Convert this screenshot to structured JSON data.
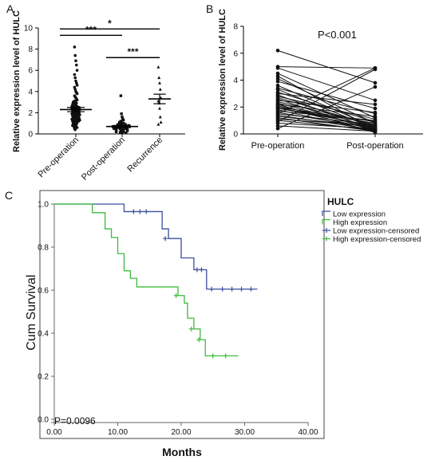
{
  "panels": {
    "a": "A",
    "b": "B",
    "c": "C"
  },
  "chart_data": [
    {
      "type": "scatter",
      "panel": "A",
      "ylabel": "Relative expression level of HULC",
      "ylim": [
        0,
        10
      ],
      "yticks": [
        "0",
        "2",
        "4",
        "6",
        "8",
        "10"
      ],
      "categories": [
        "Pre-operation",
        "Post-operation",
        "Recurrence"
      ],
      "groups": [
        {
          "name": "Pre-operation",
          "marker": "circle",
          "mean": 2.3,
          "sem": 0.2,
          "values": [
            8.2,
            7.4,
            6.9,
            6.5,
            6.0,
            5.6,
            5.3,
            5.0,
            4.8,
            4.6,
            4.4,
            4.2,
            4.0,
            3.9,
            3.8,
            3.6,
            3.5,
            3.4,
            3.3,
            3.2,
            3.1,
            3.0,
            3.0,
            2.9,
            2.9,
            2.8,
            2.8,
            2.7,
            2.7,
            2.6,
            2.6,
            2.5,
            2.5,
            2.5,
            2.4,
            2.4,
            2.4,
            2.3,
            2.3,
            2.3,
            2.2,
            2.2,
            2.2,
            2.1,
            2.1,
            2.1,
            2.0,
            2.0,
            2.0,
            1.9,
            1.9,
            1.9,
            1.8,
            1.8,
            1.8,
            1.7,
            1.7,
            1.7,
            1.6,
            1.6,
            1.6,
            1.5,
            1.5,
            1.5,
            1.4,
            1.4,
            1.4,
            1.3,
            1.3,
            1.3,
            1.2,
            1.2,
            1.2,
            1.1,
            1.1,
            1.1,
            1.0,
            1.0,
            0.9,
            0.9,
            0.8,
            0.8,
            0.7,
            0.7,
            0.6,
            0.5,
            0.4
          ]
        },
        {
          "name": "Post-operation",
          "marker": "square",
          "mean": 0.7,
          "sem": 0.1,
          "values": [
            3.6,
            1.9,
            1.6,
            1.4,
            1.3,
            1.2,
            1.1,
            1.1,
            1.0,
            1.0,
            1.0,
            0.9,
            0.9,
            0.9,
            0.9,
            0.8,
            0.8,
            0.8,
            0.8,
            0.8,
            0.7,
            0.7,
            0.7,
            0.7,
            0.7,
            0.7,
            0.6,
            0.6,
            0.6,
            0.6,
            0.6,
            0.6,
            0.5,
            0.5,
            0.5,
            0.5,
            0.5,
            0.5,
            0.4,
            0.4,
            0.4,
            0.4,
            0.4,
            0.3,
            0.3,
            0.3,
            0.3,
            0.3,
            0.2,
            0.2,
            0.2,
            0.2,
            0.1,
            0.1,
            0.1
          ]
        },
        {
          "name": "Recurrence",
          "marker": "triangle",
          "mean": 3.3,
          "sem": 0.45,
          "values": [
            6.3,
            5.3,
            4.8,
            4.2,
            3.4,
            3.1,
            2.9,
            2.4,
            1.6,
            1.1,
            0.9
          ]
        }
      ],
      "significance": [
        {
          "from": 0,
          "to": 1,
          "label": "***",
          "y": 9.3
        },
        {
          "from": 0,
          "to": 2,
          "label": "*",
          "y": 9.9
        },
        {
          "from": 1,
          "to": 2,
          "label": "***",
          "y": 7.2
        }
      ]
    },
    {
      "type": "line",
      "panel": "B",
      "ylabel": "Relative expression level of HULC",
      "ylim": [
        0,
        8
      ],
      "yticks": [
        "0",
        "2",
        "4",
        "6",
        "8"
      ],
      "categories": [
        "Pre-operation",
        "Post-operation"
      ],
      "annotation": "P<0.001",
      "pairs": [
        [
          6.2,
          3.8
        ],
        [
          5.0,
          4.9
        ],
        [
          4.9,
          2.5
        ],
        [
          4.5,
          1.2
        ],
        [
          4.3,
          0.3
        ],
        [
          4.1,
          0.8
        ],
        [
          3.9,
          1.9
        ],
        [
          3.6,
          0.5
        ],
        [
          3.4,
          1.5
        ],
        [
          3.3,
          0.4
        ],
        [
          3.1,
          0.9
        ],
        [
          3.0,
          2.2
        ],
        [
          2.9,
          0.3
        ],
        [
          2.8,
          1.1
        ],
        [
          2.7,
          0.6
        ],
        [
          2.6,
          0.2
        ],
        [
          2.5,
          1.6
        ],
        [
          2.4,
          0.7
        ],
        [
          2.3,
          0.4
        ],
        [
          2.2,
          1.3
        ],
        [
          2.1,
          0.5
        ],
        [
          2.0,
          0.3
        ],
        [
          2.0,
          0.9
        ],
        [
          1.9,
          0.6
        ],
        [
          1.8,
          0.2
        ],
        [
          1.7,
          1.0
        ],
        [
          1.6,
          0.4
        ],
        [
          1.5,
          0.7
        ],
        [
          1.4,
          0.3
        ],
        [
          1.3,
          0.5
        ],
        [
          1.2,
          0.2
        ],
        [
          1.1,
          0.6
        ],
        [
          1.0,
          0.3
        ],
        [
          0.9,
          4.8
        ],
        [
          0.8,
          0.4
        ],
        [
          0.6,
          0.2
        ],
        [
          0.4,
          3.5
        ],
        [
          1.5,
          4.9
        ],
        [
          2.2,
          0.1
        ],
        [
          1.9,
          0.8
        ]
      ]
    },
    {
      "type": "line",
      "panel": "C",
      "xlabel": "Months",
      "ylabel": "Cum Survival",
      "xlim": [
        0,
        40
      ],
      "ylim": [
        0,
        1
      ],
      "xticks": [
        "0.00",
        "10.00",
        "20.00",
        "30.00",
        "40.00"
      ],
      "yticks": [
        "0.0",
        "0.2",
        "0.4",
        "0.6",
        "0.8",
        "1.0"
      ],
      "legend_title": "HULC",
      "legend_position": "top-right",
      "annotation": "P=0.0096",
      "series": [
        {
          "name": "Low expression",
          "color": "#3a4f9e",
          "steps": [
            [
              0,
              1.0
            ],
            [
              11,
              0.965
            ],
            [
              17,
              0.885
            ],
            [
              18,
              0.84
            ],
            [
              20,
              0.75
            ],
            [
              22,
              0.695
            ],
            [
              24,
              0.605
            ],
            [
              32,
              0.605
            ]
          ],
          "censored": [
            [
              12.5,
              0.965
            ],
            [
              13.5,
              0.965
            ],
            [
              14.5,
              0.965
            ],
            [
              17.5,
              0.84
            ],
            [
              22.5,
              0.695
            ],
            [
              23.2,
              0.695
            ],
            [
              24.8,
              0.605
            ],
            [
              26.5,
              0.605
            ],
            [
              28,
              0.605
            ],
            [
              29.5,
              0.605
            ],
            [
              31,
              0.605
            ]
          ]
        },
        {
          "name": "High expression",
          "color": "#3dbb3d",
          "steps": [
            [
              0,
              1.0
            ],
            [
              6,
              0.96
            ],
            [
              8,
              0.885
            ],
            [
              9,
              0.845
            ],
            [
              10,
              0.77
            ],
            [
              11,
              0.69
            ],
            [
              12,
              0.655
            ],
            [
              13,
              0.615
            ],
            [
              19.5,
              0.575
            ],
            [
              20.5,
              0.54
            ],
            [
              21,
              0.47
            ],
            [
              22,
              0.42
            ],
            [
              23,
              0.37
            ],
            [
              23.8,
              0.295
            ],
            [
              29,
              0.295
            ]
          ],
          "censored": [
            [
              19.2,
              0.575
            ],
            [
              21.6,
              0.42
            ],
            [
              22.8,
              0.37
            ],
            [
              25,
              0.295
            ],
            [
              27,
              0.295
            ]
          ]
        }
      ],
      "legend_entries": [
        "Low expression",
        "High expression",
        "Low expression-censored",
        "High expression-censored"
      ]
    }
  ]
}
